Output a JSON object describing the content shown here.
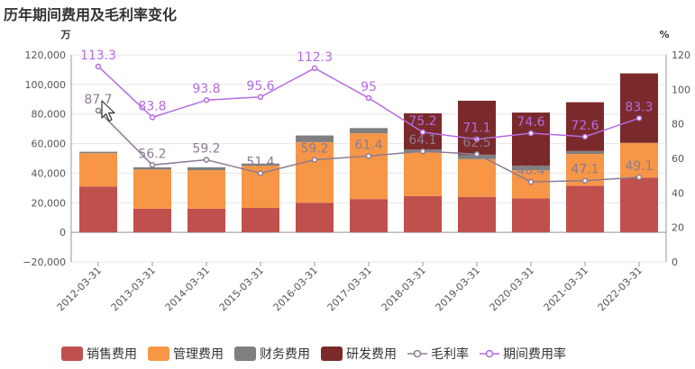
{
  "chart_data": {
    "type": "bar",
    "title": "历年期间费用及毛利率变化",
    "y_unit_left": "万",
    "y_unit_right": "%",
    "categories": [
      "2012-03-31",
      "2013-03-31",
      "2014-03-31",
      "2015-03-31",
      "2016-03-31",
      "2017-03-31",
      "2018-03-31",
      "2019-03-31",
      "2020-03-31",
      "2021-03-31",
      "2022-03-31"
    ],
    "ylim_left": [
      -20000,
      120000
    ],
    "yticks_left": [
      "−20,000",
      "0",
      "20,000",
      "40,000",
      "60,000",
      "80,000",
      "100,000",
      "120,000"
    ],
    "ylim_right": [
      0,
      120
    ],
    "yticks_right": [
      "0",
      "20",
      "40",
      "60",
      "80",
      "100",
      "120"
    ],
    "grid": true,
    "legend_position": "bottom",
    "series": [
      {
        "name": "销售费用",
        "kind": "bar",
        "stack": "fees",
        "color": "#c0504d",
        "values": [
          31000,
          16000,
          16000,
          16500,
          20000,
          22500,
          24500,
          24000,
          23000,
          31500,
          37000
        ]
      },
      {
        "name": "管理费用",
        "kind": "bar",
        "stack": "fees",
        "color": "#f79646",
        "values": [
          22500,
          26500,
          26000,
          28500,
          41000,
          44500,
          29500,
          25500,
          19000,
          21500,
          23500
        ]
      },
      {
        "name": "财务费用",
        "kind": "bar",
        "stack": "fees",
        "color": "#7f7f7f",
        "values": [
          1000,
          1500,
          2000,
          1500,
          4500,
          3500,
          2000,
          3000,
          3000,
          2000,
          0
        ]
      },
      {
        "name": "研发费用",
        "kind": "bar",
        "stack": "fees",
        "color": "#7a2a2a",
        "values": [
          0,
          0,
          0,
          0,
          0,
          0,
          24500,
          36500,
          36000,
          33000,
          47000
        ]
      },
      {
        "name": "毛利率",
        "kind": "line",
        "axis": "right",
        "color": "#8c7b92",
        "values": [
          87.7,
          56.2,
          59.2,
          51.4,
          59.2,
          61.4,
          64.1,
          62.5,
          46.4,
          47.1,
          49.1
        ],
        "labels": [
          "87.7",
          "56.2",
          "59.2",
          "51.4",
          "59.2",
          "61.4",
          "64.1",
          "62.5",
          "46.4",
          "47.1",
          "49.1"
        ]
      },
      {
        "name": "期间费用率",
        "kind": "line",
        "axis": "right",
        "color": "#b56be3",
        "values": [
          113.3,
          83.8,
          93.8,
          95.6,
          112.3,
          95,
          75.2,
          71.1,
          74.6,
          72.6,
          83.3
        ],
        "labels": [
          "113.3",
          "83.8",
          "93.8",
          "95.6",
          "112.3",
          "95",
          "75.2",
          "71.1",
          "74.6",
          "72.6",
          "83.3"
        ]
      }
    ]
  }
}
